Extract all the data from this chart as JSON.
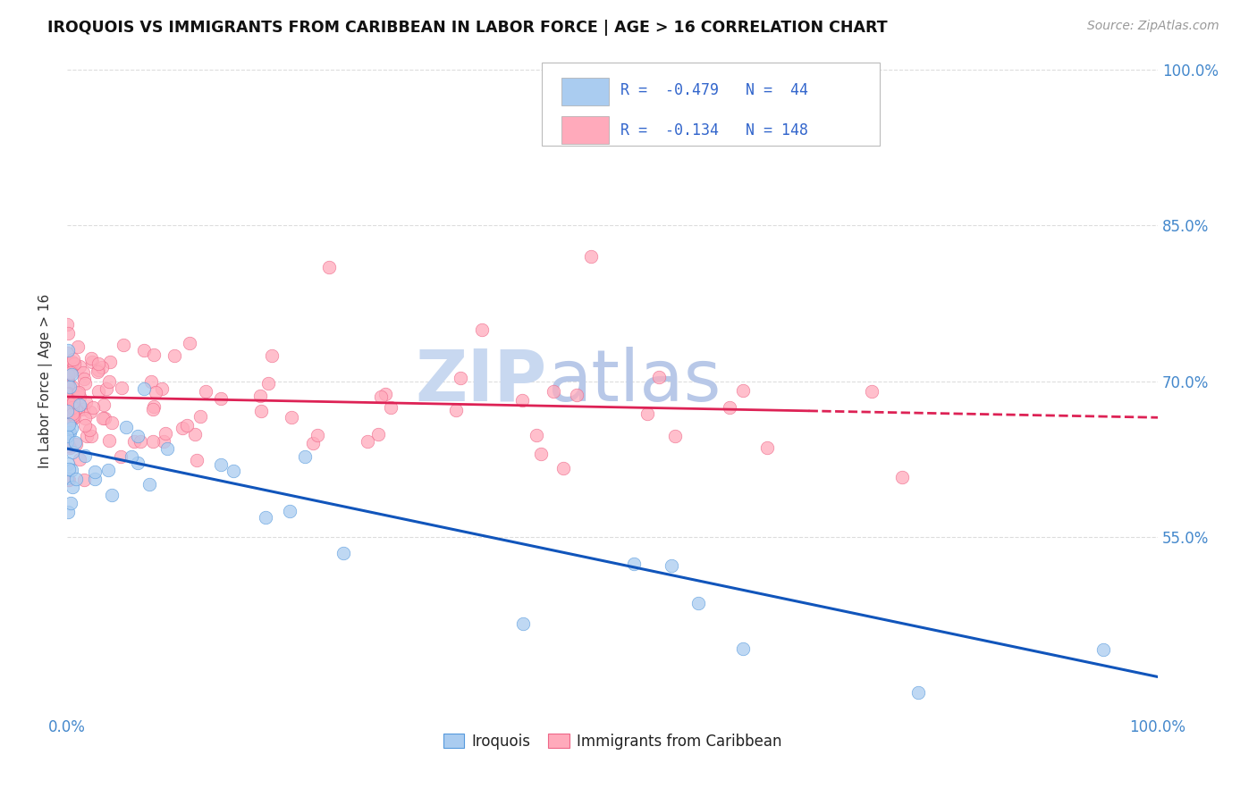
{
  "title": "IROQUOIS VS IMMIGRANTS FROM CARIBBEAN IN LABOR FORCE | AGE > 16 CORRELATION CHART",
  "source": "Source: ZipAtlas.com",
  "ylabel": "In Labor Force | Age > 16",
  "r_iroquois": -0.479,
  "n_iroquois": 44,
  "r_caribbean": -0.134,
  "n_caribbean": 148,
  "color_iroquois_fill": "#aaccf0",
  "color_iroquois_edge": "#5599dd",
  "color_iroquois_line": "#1155bb",
  "color_caribbean_fill": "#ffaabb",
  "color_caribbean_edge": "#ee6688",
  "color_caribbean_line": "#dd2255",
  "watermark_zip": "#c8d8f0",
  "watermark_atlas": "#b8c8e8",
  "background_color": "#ffffff",
  "grid_color": "#dddddd",
  "yticks": [
    0.55,
    0.7,
    0.85,
    1.0
  ],
  "ytick_labels": [
    "55.0%",
    "70.0%",
    "85.0%",
    "100.0%"
  ],
  "xlim": [
    0.0,
    1.0
  ],
  "ylim": [
    0.38,
    1.02
  ],
  "iroq_line_x0": 0.0,
  "iroq_line_y0": 0.635,
  "iroq_line_x1": 1.0,
  "iroq_line_y1": 0.415,
  "carib_line_x0": 0.0,
  "carib_line_y0": 0.685,
  "carib_line_x1": 1.0,
  "carib_line_y1": 0.665
}
